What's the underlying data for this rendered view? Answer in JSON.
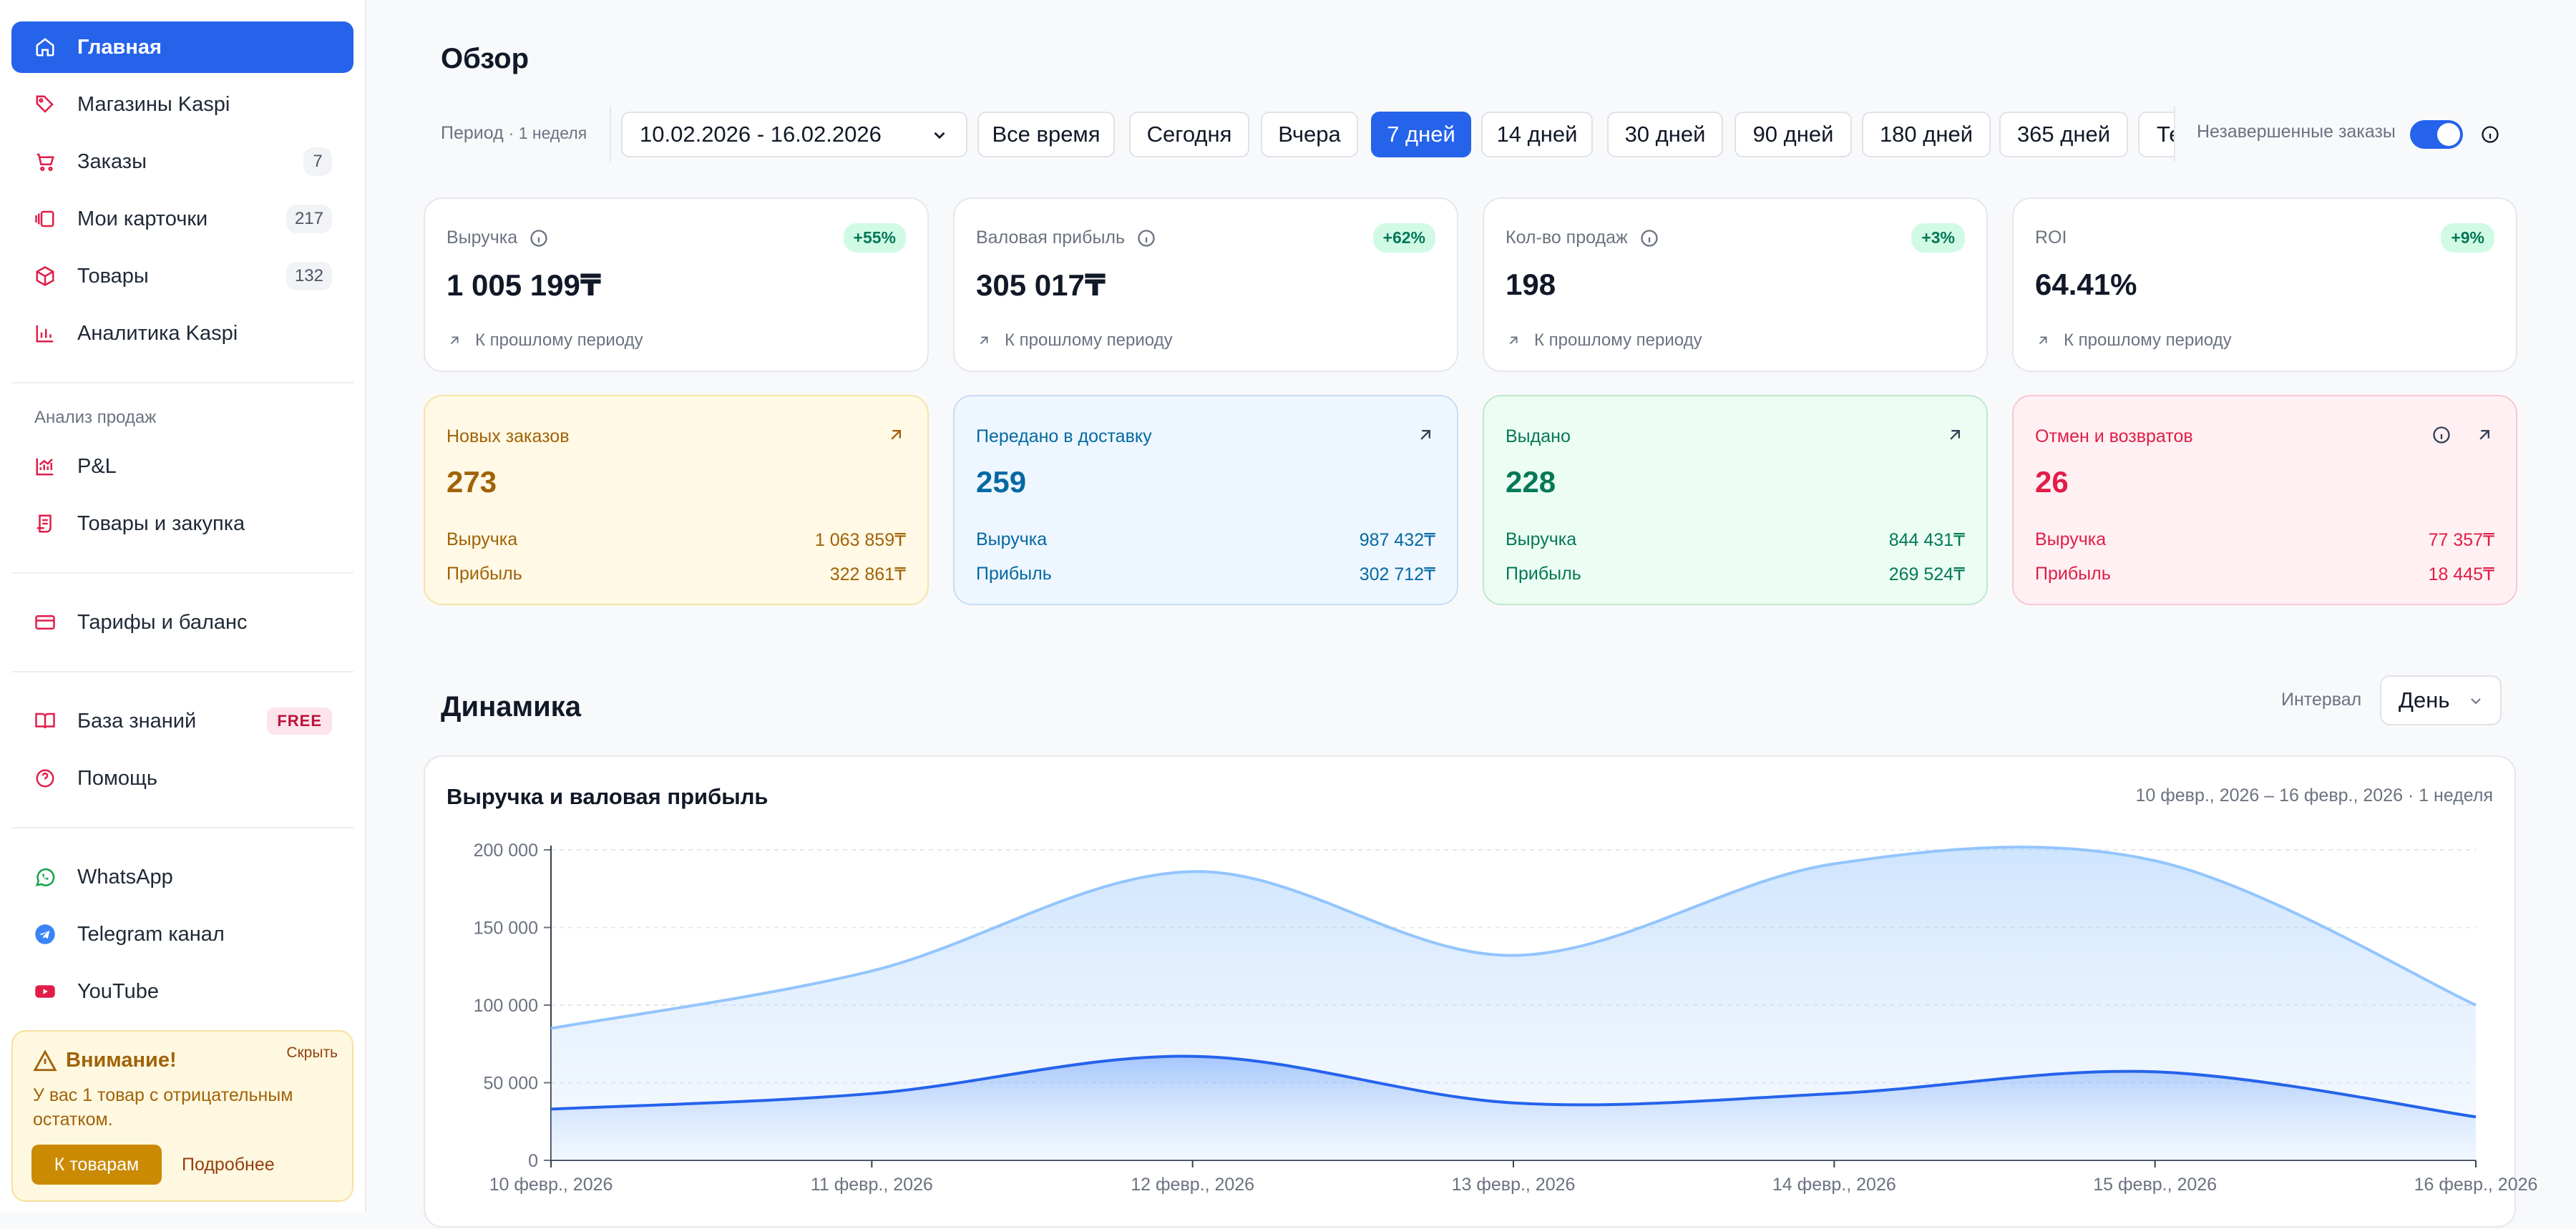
{
  "sidebar": {
    "nav": [
      {
        "label": "Главная",
        "icon": "home-icon",
        "active": true
      },
      {
        "label": "Магазины Kaspi",
        "icon": "tag-icon"
      },
      {
        "label": "Заказы",
        "icon": "cart-icon",
        "count": "7"
      },
      {
        "label": "Мои карточки",
        "icon": "cards-icon",
        "count": "217"
      },
      {
        "label": "Товары",
        "icon": "box-icon",
        "count": "132"
      },
      {
        "label": "Аналитика Kaspi",
        "icon": "bar-chart-icon"
      }
    ],
    "sales_section_label": "Анализ продаж",
    "sales_nav": [
      {
        "label": "P&L",
        "icon": "trend-chart-icon"
      },
      {
        "label": "Товары и закупка",
        "icon": "scroll-icon"
      }
    ],
    "billing": {
      "label": "Тарифы и баланс",
      "icon": "credit-card-icon"
    },
    "knowledge": {
      "label": "База знаний",
      "icon": "book-icon",
      "badge": "FREE"
    },
    "help": {
      "label": "Помощь",
      "icon": "help-icon"
    },
    "social": [
      {
        "label": "WhatsApp",
        "icon": "whatsapp-icon"
      },
      {
        "label": "Telegram канал",
        "icon": "telegram-icon"
      },
      {
        "label": "YouTube",
        "icon": "youtube-icon"
      }
    ],
    "alert": {
      "title": "Внимание!",
      "hide": "Скрыть",
      "text": "У вас 1 товар с отрицательным остатком.",
      "button": "К товарам",
      "more": "Подробнее"
    }
  },
  "overview": {
    "title": "Обзор",
    "period_label": "Период",
    "period_hint": "· 1 неделя",
    "date_range": "10.02.2026 - 16.02.2026",
    "period_buttons": [
      "Все время",
      "Сегодня",
      "Вчера",
      "7 дней",
      "14 дней",
      "30 дней",
      "90 дней",
      "180 дней",
      "365 дней",
      "Те"
    ],
    "active_period": "7 дней",
    "unfinished_label": "Незавершенные заказы",
    "unfinished_on": true
  },
  "kpis": [
    {
      "title": "Выручка",
      "value": "1 005 199₸",
      "badge": "+55%",
      "compare": "К прошлому периоду"
    },
    {
      "title": "Валовая прибыль",
      "value": "305 017₸",
      "badge": "+62%",
      "compare": "К прошлому периоду"
    },
    {
      "title": "Кол-во продаж",
      "value": "198",
      "badge": "+3%",
      "compare": "К прошлому периоду"
    },
    {
      "title": "ROI",
      "value": "64.41%",
      "badge": "+9%",
      "compare": "К прошлому периоду"
    }
  ],
  "status_cards": [
    {
      "title": "Новых заказов",
      "value": "273",
      "row1_label": "Выручка",
      "row1_value": "1 063 859₸",
      "row2_label": "Прибыль",
      "row2_value": "322 861₸"
    },
    {
      "title": "Передано в доставку",
      "value": "259",
      "row1_label": "Выручка",
      "row1_value": "987 432₸",
      "row2_label": "Прибыль",
      "row2_value": "302 712₸"
    },
    {
      "title": "Выдано",
      "value": "228",
      "row1_label": "Выручка",
      "row1_value": "844 431₸",
      "row2_label": "Прибыль",
      "row2_value": "269 524₸"
    },
    {
      "title": "Отмен и возвратов",
      "value": "26",
      "row1_label": "Выручка",
      "row1_value": "77 357₸",
      "row2_label": "Прибыль",
      "row2_value": "18 445₸"
    }
  ],
  "colors": {
    "accent": "#2563eb",
    "yellow": "#a16207",
    "blue": "#0369a1",
    "green": "#047857",
    "red": "#e11d48"
  },
  "dynamics": {
    "title": "Динамика",
    "interval_label": "Интервал",
    "interval_value": "День"
  },
  "chart_data": {
    "type": "area",
    "title": "Выручка и валовая прибыль",
    "subtitle": "10 февр., 2026 – 16 февр., 2026 · 1 неделя",
    "categories": [
      "10 февр., 2026",
      "11 февр., 2026",
      "12 февр., 2026",
      "13 февр., 2026",
      "14 февр., 2026",
      "15 февр., 2026",
      "16 февр., 2026"
    ],
    "series": [
      {
        "values": [
          85000,
          122000,
          186000,
          132000,
          191000,
          193000,
          100000
        ],
        "color": "#93c5fd"
      },
      {
        "values": [
          33000,
          43000,
          67000,
          37000,
          43000,
          57000,
          28000
        ],
        "color": "#2563eb"
      }
    ],
    "yticks": [
      "200 000",
      "150 000",
      "100 000",
      "50 000",
      "0"
    ],
    "ylim": [
      0,
      200000
    ],
    "grid": true
  }
}
